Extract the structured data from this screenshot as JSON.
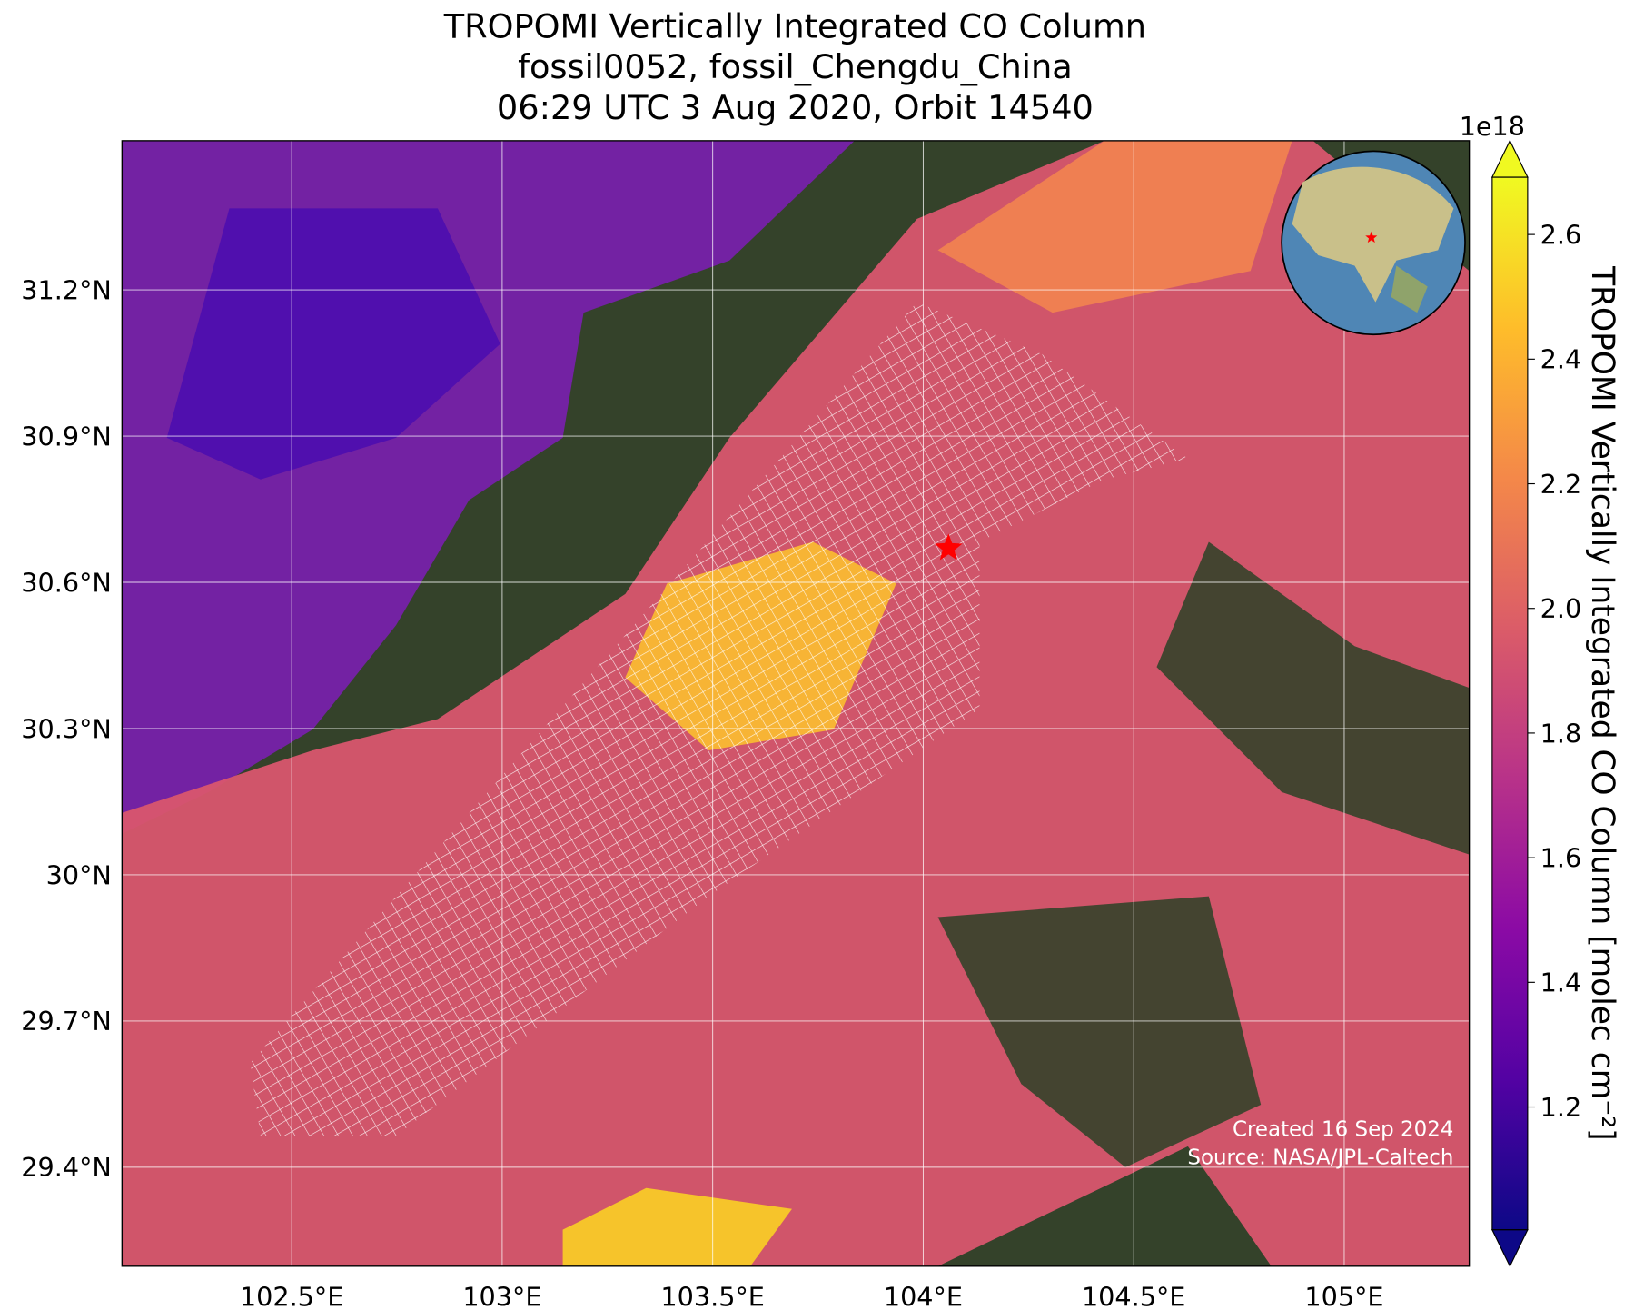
{
  "chart_data": {
    "type": "map",
    "title": [
      "TROPOMI Vertically Integrated CO Column",
      "fossil0052, fossil_Chengdu_China",
      "06:29 UTC 3 Aug 2020, Orbit 14540"
    ],
    "xlim": [
      102.097,
      105.297
    ],
    "ylim": [
      29.197,
      31.506
    ],
    "xticks": [
      {
        "value": 102.5,
        "label": "102.5°E"
      },
      {
        "value": 103,
        "label": "103°E"
      },
      {
        "value": 103.5,
        "label": "103.5°E"
      },
      {
        "value": 104,
        "label": "104°E"
      },
      {
        "value": 104.5,
        "label": "104.5°E"
      },
      {
        "value": 105,
        "label": "105°E"
      }
    ],
    "yticks": [
      {
        "value": 29.4,
        "label": "29.4°N"
      },
      {
        "value": 29.7,
        "label": "29.7°N"
      },
      {
        "value": 30,
        "label": "30°N"
      },
      {
        "value": 30.3,
        "label": "30.3°N"
      },
      {
        "value": 30.6,
        "label": "30.6°N"
      },
      {
        "value": 30.9,
        "label": "30.9°N"
      },
      {
        "value": 31.2,
        "label": "31.2°N"
      }
    ],
    "grid": true,
    "marker": {
      "lon": 104.06,
      "lat": 30.67,
      "color": "#ff0000"
    },
    "colorbar": {
      "label": "TROPOMI Vertically Integrated CO Column [molec cm⁻²]",
      "offset": "1e18",
      "clim": [
        1.003,
        2.692
      ],
      "ticks": [
        1.2,
        1.4,
        1.6,
        1.8,
        {
          "value": 2,
          "label": "2.0"
        },
        2.2,
        2.4,
        2.6
      ],
      "colormap": [
        "#0d0887",
        "#5302a3",
        "#8b0aa5",
        "#b83289",
        "#db5c68",
        "#f48849",
        "#febd2a",
        "#f0f921"
      ]
    },
    "credits": [
      "Created 16 Sep 2024",
      "Source: NASA/JPL-Caltech"
    ]
  }
}
